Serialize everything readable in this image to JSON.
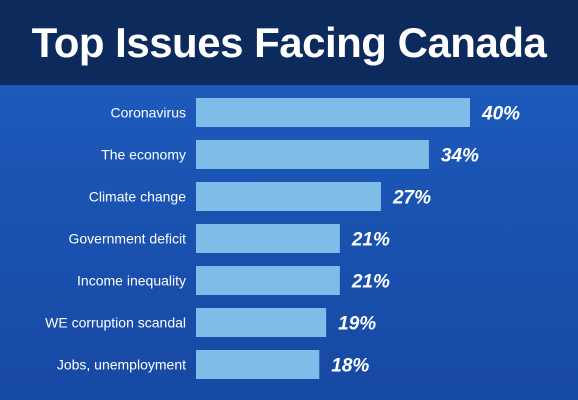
{
  "header": {
    "title": "Top Issues Facing Canada"
  },
  "colors": {
    "background": "#1c57b8",
    "title_bar": "#0d2a5c",
    "bar": "#7fbde8",
    "text": "#ffffff"
  },
  "chart_data": {
    "type": "bar",
    "orientation": "horizontal",
    "title": "Top Issues Facing Canada",
    "categories": [
      "Coronavirus",
      "The economy",
      "Climate change",
      "Government deficit",
      "Income inequality",
      "WE corruption scandal",
      "Jobs, unemployment"
    ],
    "values": [
      40,
      34,
      27,
      21,
      21,
      19,
      18
    ],
    "value_labels": [
      "40%",
      "34%",
      "27%",
      "21%",
      "21%",
      "19%",
      "18%"
    ],
    "xlabel": "",
    "ylabel": "",
    "xlim": [
      0,
      40
    ],
    "grid": false,
    "legend": "none"
  }
}
